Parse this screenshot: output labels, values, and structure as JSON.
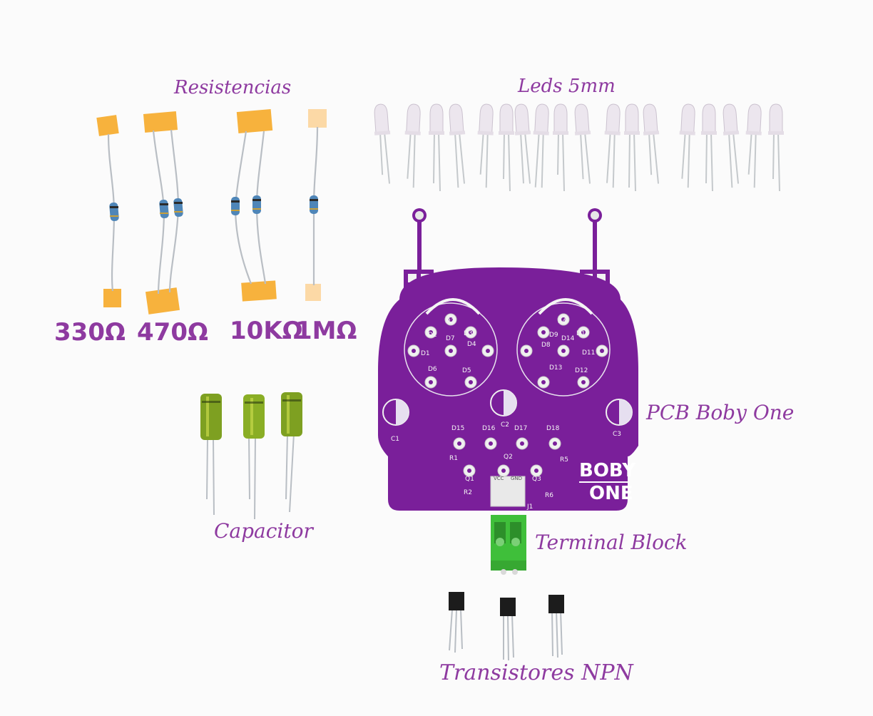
{
  "labels": {
    "resistors": "Resistencias",
    "leds": "Leds 5mm",
    "pcb": "PCB Boby One",
    "capacitor": "Capacitor",
    "terminal": "Terminal Block",
    "transistors": "Transistores NPN"
  },
  "resistor_values": [
    "330Ω",
    "470Ω",
    "10KΩ",
    "1MΩ"
  ],
  "pcb": {
    "brand_line1": "BOBY",
    "brand_line2": "ONE",
    "silk": [
      "R3",
      "R4",
      "D2",
      "D3",
      "D7",
      "D9",
      "D10",
      "D1",
      "D4",
      "D8",
      "D14",
      "D11",
      "D6",
      "D5",
      "D13",
      "D12",
      "D15",
      "D16",
      "D17",
      "D18",
      "C1",
      "C2",
      "C3",
      "R1",
      "R2",
      "R5",
      "R6",
      "Q1",
      "Q2",
      "Q3",
      "J1",
      "VCC",
      "GND"
    ]
  },
  "colors": {
    "pcb": "#7a1f9a",
    "text": "#8e3aa0",
    "terminal": "#3fbf3a",
    "capacitor": "#7ea021"
  }
}
